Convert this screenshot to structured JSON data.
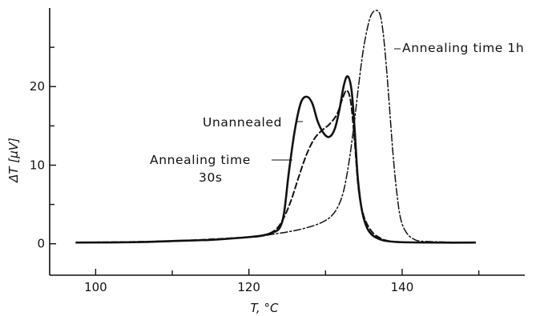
{
  "chart_data": {
    "type": "line",
    "xlabel": "T, °C",
    "ylabel": "ΔT [μV]",
    "xlim": [
      94,
      156
    ],
    "ylim": [
      -4,
      30
    ],
    "xticks": [
      100,
      110,
      120,
      130,
      140,
      150
    ],
    "xtick_labels": [
      "100",
      "",
      "120",
      "",
      "140",
      ""
    ],
    "yticks": [
      0,
      5,
      10,
      15,
      20,
      25
    ],
    "ytick_labels": [
      "0",
      "",
      "10",
      "",
      "20",
      ""
    ],
    "grid": false,
    "legend": "none",
    "annotations": [
      {
        "text": "Unannealed"
      },
      {
        "text": "Annealing time"
      },
      {
        "text": "30s"
      },
      {
        "text": "Annealing time 1h"
      }
    ],
    "series": [
      {
        "id": "unannealed",
        "style": "solid",
        "x": [
          97.5,
          105,
          110,
          115,
          120,
          122,
          123,
          124,
          124.6,
          125.2,
          126,
          126.8,
          127.6,
          128.3,
          129,
          129.8,
          130.5,
          131.2,
          131.8,
          132.4,
          132.9,
          133.4,
          133.8,
          134.2,
          134.7,
          135.3,
          136,
          137,
          138,
          140,
          145,
          149.5
        ],
        "y": [
          0.15,
          0.2,
          0.35,
          0.5,
          0.85,
          1.1,
          1.4,
          2.0,
          4.0,
          9.0,
          14.5,
          18.0,
          18.7,
          17.8,
          15.5,
          14.0,
          13.6,
          14.6,
          17.0,
          20.2,
          21.3,
          19.5,
          14.5,
          8.5,
          4.5,
          2.3,
          1.2,
          0.6,
          0.35,
          0.2,
          0.15,
          0.15
        ]
      },
      {
        "id": "annealing-30s",
        "style": "dashed",
        "x": [
          97.5,
          110,
          120,
          122,
          123.5,
          124.5,
          125.5,
          126.5,
          127.5,
          128.5,
          129.5,
          130.5,
          131.5,
          132.3,
          132.8,
          133.3,
          133.8,
          134.3,
          135,
          136,
          137,
          138,
          140,
          145,
          149.5
        ],
        "y": [
          0.15,
          0.35,
          0.85,
          1.1,
          1.8,
          3.2,
          5.5,
          8.5,
          11.3,
          13.3,
          14.4,
          15.2,
          16.5,
          18.7,
          19.5,
          18.0,
          13.0,
          7.0,
          3.5,
          1.6,
          0.8,
          0.4,
          0.2,
          0.15,
          0.15
        ]
      },
      {
        "id": "annealing-1h",
        "style": "dash-dot",
        "x": [
          97.5,
          110,
          120,
          123,
          125,
          127,
          129,
          130.5,
          131.5,
          132.3,
          133,
          133.7,
          134.3,
          134.9,
          135.5,
          136,
          136.6,
          137.1,
          137.5,
          137.9,
          138.3,
          138.8,
          139.3,
          139.8,
          140.5,
          141.5,
          143,
          149.5
        ],
        "y": [
          0.15,
          0.3,
          0.8,
          1.2,
          1.5,
          1.9,
          2.5,
          3.3,
          4.5,
          6.5,
          10.0,
          15.0,
          20.0,
          24.5,
          27.6,
          29.2,
          29.7,
          29.2,
          27.0,
          23.0,
          18.0,
          11.5,
          6.5,
          3.2,
          1.5,
          0.6,
          0.3,
          0.15
        ]
      }
    ]
  }
}
